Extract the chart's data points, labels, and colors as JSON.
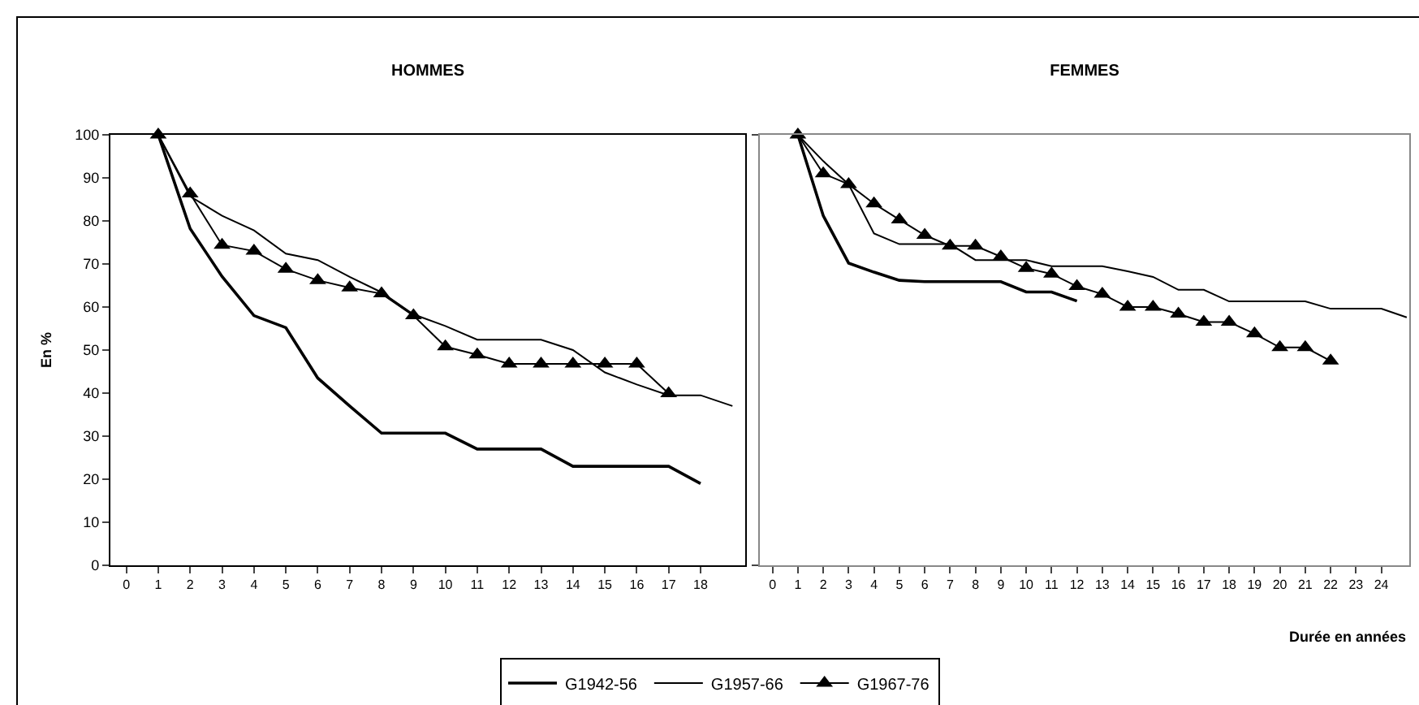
{
  "chart_data": [
    {
      "type": "line",
      "title": "HOMMES",
      "ylabel": "En %",
      "x": [
        1,
        2,
        3,
        4,
        5,
        6,
        7,
        8,
        9,
        10,
        11,
        12,
        13,
        14,
        15,
        16,
        17,
        18,
        19
      ],
      "xlim": [
        -0.5,
        19.4
      ],
      "xticks": [
        0,
        1,
        2,
        3,
        4,
        5,
        6,
        7,
        8,
        9,
        10,
        11,
        12,
        13,
        14,
        15,
        16,
        17,
        18
      ],
      "ylim": [
        0,
        100
      ],
      "yticks": [
        0,
        10,
        20,
        30,
        40,
        50,
        60,
        70,
        80,
        90,
        100
      ],
      "grid": false,
      "series": [
        {
          "color": "#000000",
          "marker": "none",
          "values": [
            100,
            78.2,
            67.1,
            58,
            55.2,
            43.5,
            37,
            30.7,
            30.7,
            30.7,
            27,
            27,
            27,
            23,
            23,
            23,
            23,
            19,
            null
          ]
        },
        {
          "color": "#000000",
          "marker": "none",
          "values": [
            100,
            85.7,
            81.2,
            77.8,
            72.4,
            70.9,
            67,
            63.4,
            58.3,
            55.6,
            52.4,
            52.4,
            52.4,
            50,
            44.8,
            42,
            39.5,
            39.5,
            37
          ]
        },
        {
          "color": "#000000",
          "marker": "triangle",
          "values": [
            100,
            86.3,
            74.4,
            73,
            68.8,
            66.2,
            64.5,
            63.1,
            58,
            50.8,
            48.9,
            46.8,
            46.8,
            46.8,
            46.8,
            46.8,
            39.9,
            null,
            null
          ]
        }
      ]
    },
    {
      "type": "line",
      "title": "FEMMES",
      "xlabel": "Durée en années",
      "x": [
        1,
        2,
        3,
        4,
        5,
        6,
        7,
        8,
        9,
        10,
        11,
        12,
        13,
        14,
        15,
        16,
        17,
        18,
        19,
        20,
        21,
        22,
        23,
        24,
        25
      ],
      "xlim": [
        -0.5,
        25.1
      ],
      "xticks": [
        0,
        1,
        2,
        3,
        4,
        5,
        6,
        7,
        8,
        9,
        10,
        11,
        12,
        13,
        14,
        15,
        16,
        17,
        18,
        19,
        20,
        21,
        22,
        23,
        24
      ],
      "ylim": [
        0,
        100
      ],
      "yticks": [
        {
          "value": 0,
          "label": null
        },
        {
          "value": 100,
          "label": null
        }
      ],
      "tick_labels": "x",
      "grid": false,
      "legend": "bottom",
      "series": [
        {
          "name": "G1942-56",
          "color": "#000000",
          "marker": "none",
          "values": [
            100,
            81.2,
            70.2,
            68.1,
            66.2,
            65.9,
            65.9,
            65.9,
            65.9,
            63.5,
            63.5,
            61.4,
            null,
            null,
            null,
            null,
            null,
            null,
            null,
            null,
            null,
            null,
            null,
            null,
            null
          ]
        },
        {
          "name": "G1957-66",
          "color": "#000000",
          "marker": "none",
          "values": [
            100,
            93.9,
            88.5,
            77.1,
            74.6,
            74.6,
            74.6,
            70.9,
            70.9,
            70.9,
            69.5,
            69.5,
            69.5,
            68.3,
            67,
            64,
            64,
            61.3,
            61.3,
            61.3,
            61.3,
            59.6,
            59.6,
            59.6,
            57.6
          ]
        },
        {
          "name": "G1967-76",
          "color": "#000000",
          "marker": "triangle",
          "values": [
            100,
            91,
            88.5,
            84,
            80.3,
            76.7,
            74.2,
            74.2,
            71.7,
            69,
            67.7,
            64.8,
            63,
            60,
            60,
            58.4,
            56.5,
            56.5,
            53.8,
            50.6,
            50.6,
            47.5,
            null,
            null,
            null
          ]
        }
      ]
    }
  ]
}
